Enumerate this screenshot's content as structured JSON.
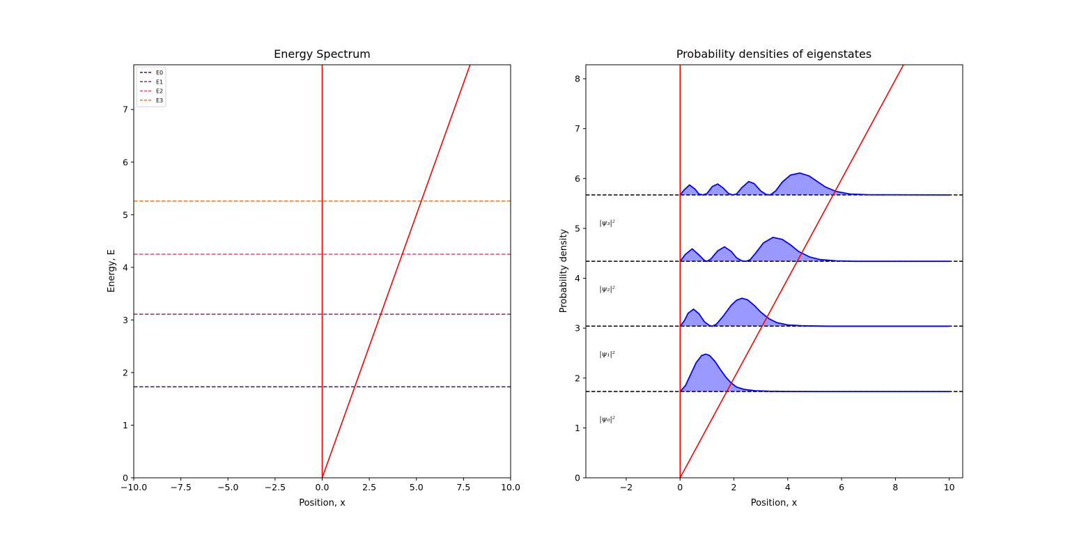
{
  "chart_data": [
    {
      "type": "line",
      "title": "Energy Spectrum",
      "xlabel": "Position, x",
      "ylabel": "Energy, E",
      "xlim": [
        -10,
        10
      ],
      "ylim": [
        0,
        7.85
      ],
      "xticks": [
        -10,
        -7.5,
        -5,
        -2.5,
        0,
        2.5,
        5,
        7.5,
        10
      ],
      "xtick_labels": [
        "−10.0",
        "−7.5",
        "−5.0",
        "−2.5",
        "0.0",
        "2.5",
        "5.0",
        "7.5",
        "10.0"
      ],
      "yticks": [
        0,
        1,
        2,
        3,
        4,
        5,
        6,
        7
      ],
      "ytick_labels": [
        "0",
        "1",
        "2",
        "3",
        "4",
        "5",
        "6",
        "7"
      ],
      "grid": false,
      "legend_position": "top-left",
      "potential": {
        "name": "",
        "color": "#ff0000",
        "x": [
          0,
          0,
          7.85
        ],
        "y": [
          7.85,
          0,
          7.85
        ]
      },
      "series": [
        {
          "name": "E0",
          "value": 1.73,
          "color": "#3b0f70"
        },
        {
          "name": "E1",
          "value": 3.11,
          "color": "#8c2981"
        },
        {
          "name": "E2",
          "value": 4.25,
          "color": "#de4968"
        },
        {
          "name": "E3",
          "value": 5.26,
          "color": "#f0721f"
        }
      ]
    },
    {
      "type": "area",
      "title": "Probability densities of eigenstates",
      "xlabel": "Position, x",
      "ylabel": "Probability density",
      "xlim": [
        -3.5,
        10.5
      ],
      "ylim": [
        0,
        8.28
      ],
      "xticks": [
        -2,
        0,
        2,
        4,
        6,
        8,
        10
      ],
      "xtick_labels": [
        "−2",
        "0",
        "2",
        "4",
        "6",
        "8",
        "10"
      ],
      "yticks": [
        0,
        1,
        2,
        3,
        4,
        5,
        6,
        7,
        8
      ],
      "ytick_labels": [
        "0",
        "1",
        "2",
        "3",
        "4",
        "5",
        "6",
        "7",
        "8"
      ],
      "grid": false,
      "potential": {
        "color": "#ff0000",
        "x": [
          0,
          0,
          8.3
        ],
        "y": [
          8.28,
          0,
          8.28
        ]
      },
      "fill_color": "#9999ff",
      "curve_color": "#0000ff",
      "baseline_color": "#000000",
      "series": [
        {
          "label": "|ψ₀|²",
          "offset": 1.73,
          "x": [
            0,
            0.2,
            0.4,
            0.6,
            0.8,
            0.95,
            1.1,
            1.3,
            1.5,
            1.7,
            1.9,
            2.1,
            2.4,
            2.8,
            3.3,
            4,
            5,
            10
          ],
          "y": [
            0,
            0.12,
            0.35,
            0.58,
            0.72,
            0.75,
            0.72,
            0.6,
            0.44,
            0.29,
            0.17,
            0.09,
            0.04,
            0.015,
            0.005,
            0.001,
            0,
            0
          ]
        },
        {
          "label": "|ψ₁|²",
          "offset": 3.04,
          "x": [
            0,
            0.15,
            0.3,
            0.5,
            0.7,
            0.9,
            1.1,
            1.2,
            1.35,
            1.6,
            1.9,
            2.1,
            2.3,
            2.5,
            2.75,
            3.0,
            3.3,
            3.6,
            4.0,
            4.5,
            5.5,
            10
          ],
          "y": [
            0,
            0.1,
            0.26,
            0.34,
            0.25,
            0.09,
            0.01,
            0,
            0.04,
            0.2,
            0.42,
            0.52,
            0.56,
            0.53,
            0.42,
            0.28,
            0.15,
            0.07,
            0.025,
            0.008,
            0,
            0
          ]
        },
        {
          "label": "|ψ₂|²",
          "offset": 4.34,
          "x": [
            0,
            0.2,
            0.45,
            0.7,
            0.9,
            1.0,
            1.15,
            1.4,
            1.65,
            1.9,
            2.1,
            2.3,
            2.45,
            2.6,
            2.8,
            3.1,
            3.45,
            3.8,
            4.1,
            4.4,
            4.8,
            5.2,
            5.8,
            6.5,
            10
          ],
          "y": [
            0,
            0.14,
            0.25,
            0.13,
            0.02,
            0,
            0.05,
            0.21,
            0.29,
            0.2,
            0.07,
            0.01,
            0,
            0.03,
            0.16,
            0.37,
            0.48,
            0.44,
            0.33,
            0.2,
            0.09,
            0.035,
            0.01,
            0,
            0
          ]
        },
        {
          "label": "|ψ₃|²",
          "offset": 5.67,
          "x": [
            0,
            0.15,
            0.35,
            0.55,
            0.7,
            0.85,
            1.0,
            1.2,
            1.4,
            1.6,
            1.8,
            1.95,
            2.1,
            2.3,
            2.55,
            2.75,
            3.0,
            3.2,
            3.35,
            3.55,
            3.8,
            4.1,
            4.45,
            4.8,
            5.1,
            5.4,
            5.8,
            6.3,
            7.0,
            10
          ],
          "y": [
            0,
            0.1,
            0.2,
            0.12,
            0.02,
            0,
            0.03,
            0.17,
            0.22,
            0.14,
            0.03,
            0,
            0.02,
            0.15,
            0.27,
            0.23,
            0.08,
            0.01,
            0,
            0.08,
            0.26,
            0.4,
            0.44,
            0.38,
            0.27,
            0.16,
            0.07,
            0.02,
            0.005,
            0
          ]
        }
      ]
    }
  ]
}
